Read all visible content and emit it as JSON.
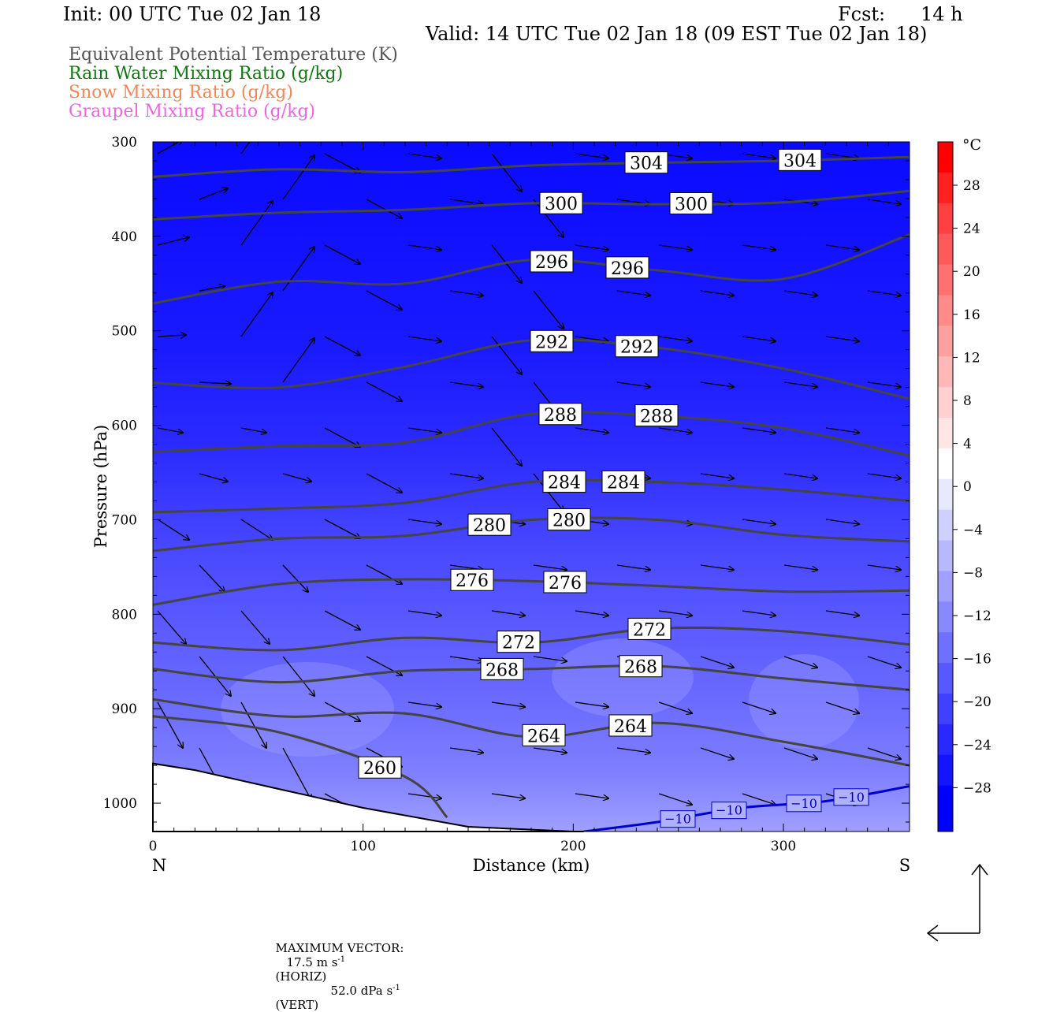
{
  "header": {
    "init": "Init: 00 UTC Tue 02 Jan 18",
    "fcst_label": "Fcst:",
    "fcst_value": "14 h",
    "valid": "Valid: 14 UTC Tue 02 Jan 18 (09 EST Tue 02 Jan 18)"
  },
  "fields": [
    {
      "label": "Equivalent Potential Temperature (K)",
      "color": "#555555"
    },
    {
      "label": "Rain Water Mixing Ratio (g/kg)",
      "color": "#117711"
    },
    {
      "label": "Snow Mixing Ratio (g/kg)",
      "color": "#f0885a"
    },
    {
      "label": "Graupel Mixing Ratio (g/kg)",
      "color": "#ee66dd"
    }
  ],
  "colorbar": {
    "unit": "°C",
    "labels": [
      "28",
      "24",
      "20",
      "16",
      "12",
      "8",
      "4",
      "0",
      "−4",
      "−8",
      "−12",
      "−16",
      "−20",
      "−24",
      "−28"
    ]
  },
  "bottom": {
    "left_end": "N",
    "right_end": "S"
  },
  "max_vector": {
    "label": "MAXIMUM VECTOR:",
    "horiz": "17.5 m s",
    "horiz_sup": "-1",
    "horiz_tag": "(HORIZ)",
    "vert": "52.0 dPa s",
    "vert_sup": "-1",
    "vert_tag": "(VERT)"
  },
  "chart_data": {
    "type": "heatmap",
    "title": "",
    "xlabel": "Distance (km)",
    "ylabel": "Pressure (hPa)",
    "xlim": [
      0,
      360
    ],
    "ylim": [
      1030,
      300
    ],
    "xticks": [
      0,
      100,
      200,
      300
    ],
    "yticks": [
      300,
      400,
      500,
      600,
      700,
      800,
      900,
      1000
    ],
    "colorbar_ticks": [
      28,
      24,
      20,
      16,
      12,
      8,
      4,
      0,
      -4,
      -8,
      -12,
      -16,
      -20,
      -24,
      -28
    ],
    "fill_field": "Temperature (°C)",
    "theta_e_contours": [
      {
        "label": "304",
        "level": 304,
        "x": [
          0,
          60,
          120,
          180,
          240,
          300,
          360
        ],
        "p": [
          337,
          329,
          332,
          325,
          322,
          320,
          316
        ]
      },
      {
        "label": "300",
        "level": 300,
        "x": [
          0,
          60,
          120,
          180,
          240,
          300,
          360
        ],
        "p": [
          382,
          375,
          372,
          365,
          366,
          364,
          352
        ]
      },
      {
        "label": "296",
        "level": 296,
        "x": [
          0,
          60,
          120,
          180,
          240,
          300,
          360
        ],
        "p": [
          471,
          448,
          450,
          425,
          436,
          445,
          398
        ]
      },
      {
        "label": "292",
        "level": 292,
        "x": [
          0,
          60,
          120,
          180,
          240,
          300,
          360
        ],
        "p": [
          555,
          560,
          538,
          510,
          518,
          540,
          572
        ]
      },
      {
        "label": "288",
        "level": 288,
        "x": [
          0,
          60,
          120,
          180,
          240,
          300,
          360
        ],
        "p": [
          628,
          622,
          618,
          588,
          590,
          603,
          632
        ]
      },
      {
        "label": "284",
        "level": 284,
        "x": [
          0,
          60,
          120,
          180,
          240,
          300,
          360
        ],
        "p": [
          692,
          688,
          682,
          660,
          660,
          668,
          680
        ]
      },
      {
        "label": "280",
        "level": 280,
        "x": [
          0,
          60,
          120,
          180,
          240,
          300,
          360
        ],
        "p": [
          733,
          720,
          717,
          700,
          700,
          716,
          723
        ]
      },
      {
        "label": "276",
        "level": 276,
        "x": [
          0,
          60,
          120,
          180,
          240,
          300,
          360
        ],
        "p": [
          790,
          768,
          763,
          765,
          770,
          776,
          775
        ]
      },
      {
        "label": "272",
        "level": 272,
        "x": [
          0,
          60,
          120,
          180,
          240,
          300,
          360
        ],
        "p": [
          830,
          838,
          825,
          830,
          815,
          818,
          832
        ]
      },
      {
        "label": "268",
        "level": 268,
        "x": [
          0,
          60,
          120,
          180,
          240,
          300,
          360
        ],
        "p": [
          858,
          872,
          860,
          858,
          855,
          868,
          880
        ]
      },
      {
        "label": "264",
        "level": 264,
        "x": [
          0,
          60,
          120,
          180,
          240,
          300,
          360
        ],
        "p": [
          890,
          908,
          905,
          930,
          915,
          935,
          960
        ]
      },
      {
        "label": "260",
        "level": 260,
        "x": [
          0,
          60,
          120,
          140
        ],
        "p": [
          908,
          925,
          972,
          1015
        ]
      }
    ],
    "temperature_contour": {
      "label": "−10",
      "x": [
        205,
        240,
        280,
        320,
        360
      ],
      "p": [
        1030,
        1020,
        1005,
        998,
        982
      ]
    },
    "terrain": {
      "x": [
        0,
        20,
        60,
        100,
        150,
        200,
        205
      ],
      "p": [
        958,
        965,
        985,
        1005,
        1025,
        1030,
        1030
      ]
    }
  }
}
